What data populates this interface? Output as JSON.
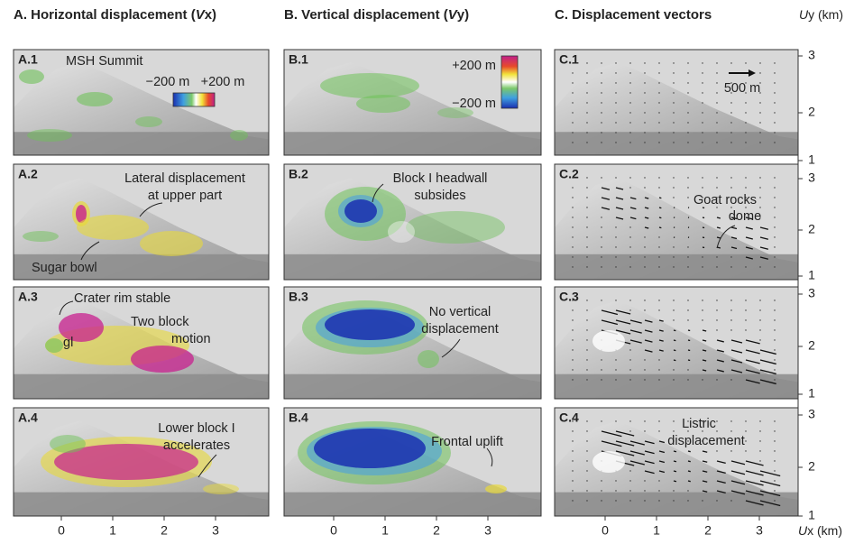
{
  "columns": [
    {
      "title": [
        "A. Horizontal displacement (",
        "V",
        "x)"
      ],
      "legend": [
        "−200 m",
        "+200 m"
      ],
      "panels": [
        {
          "label": "A.1",
          "notes": [
            "MSH Summit"
          ]
        },
        {
          "label": "A.2",
          "notes": [
            "Lateral displacement",
            "at upper part",
            "Sugar bowl"
          ]
        },
        {
          "label": "A.3",
          "notes": [
            "Crater rim stable",
            "Two block",
            "motion",
            "gl"
          ]
        },
        {
          "label": "A.4",
          "notes": [
            "Lower block I",
            "accelerates"
          ]
        }
      ]
    },
    {
      "title": [
        "B. Vertical displacement (",
        "V",
        "y)"
      ],
      "legend": [
        "+200 m",
        "−200 m"
      ],
      "panels": [
        {
          "label": "B.1",
          "notes": []
        },
        {
          "label": "B.2",
          "notes": [
            "Block I headwall",
            "subsides"
          ]
        },
        {
          "label": "B.3",
          "notes": [
            "No vertical",
            "displacement"
          ]
        },
        {
          "label": "B.4",
          "notes": [
            "Frontal uplift"
          ]
        }
      ]
    },
    {
      "title": [
        "C. Displacement vectors"
      ],
      "legend": [
        "500 m"
      ],
      "panels": [
        {
          "label": "C.1",
          "notes": []
        },
        {
          "label": "C.2",
          "notes": [
            "Goat rocks",
            "dome"
          ]
        },
        {
          "label": "C.3",
          "notes": []
        },
        {
          "label": "C.4",
          "notes": [
            "Listric",
            "displacement"
          ]
        }
      ]
    }
  ],
  "x_axis": {
    "label": [
      "U",
      "x (km)"
    ],
    "ticks": [
      "0",
      "1",
      "2",
      "3"
    ]
  },
  "y_axis": {
    "label": [
      "U",
      "y (km)"
    ],
    "ticks": [
      "3",
      "2",
      "1"
    ]
  }
}
